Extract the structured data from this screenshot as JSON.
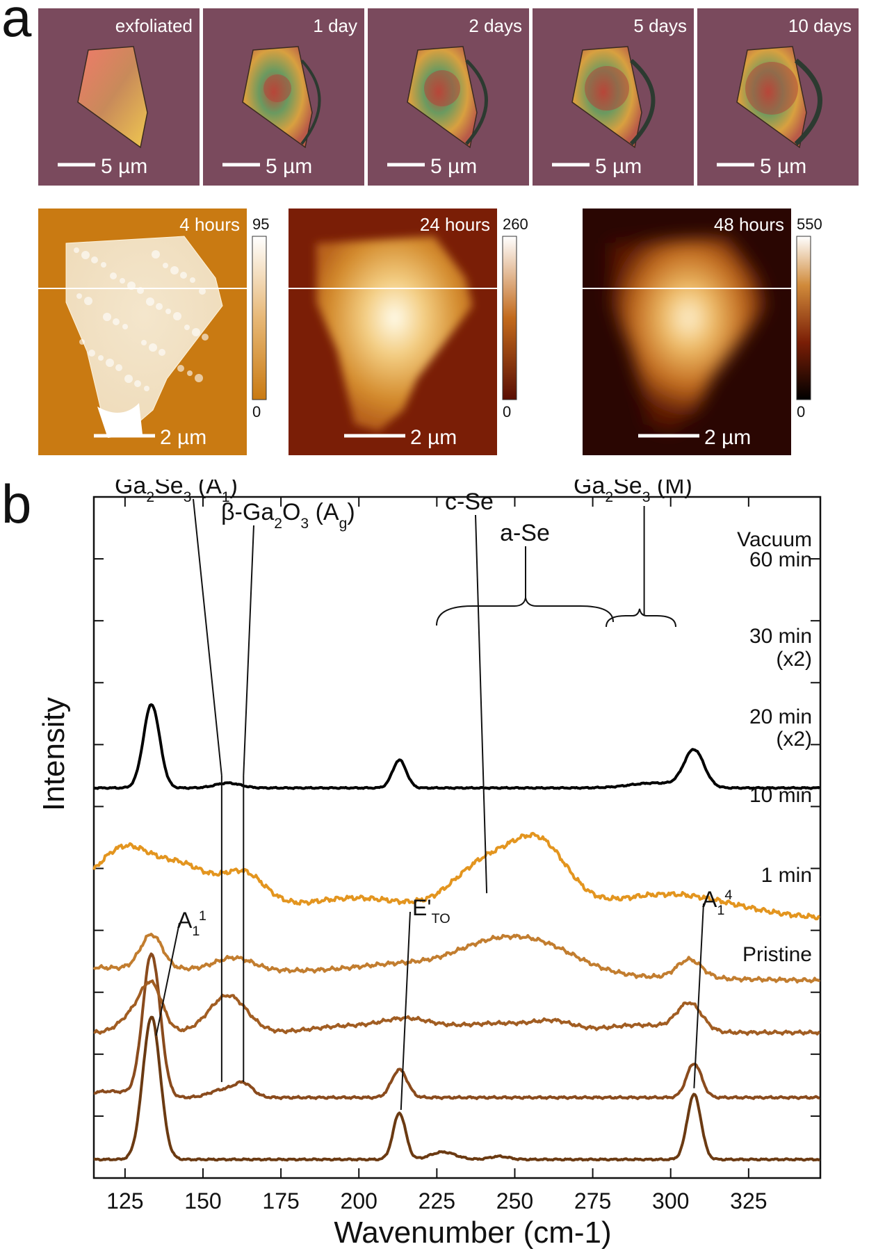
{
  "panel_labels": {
    "a": "a",
    "b": "b"
  },
  "optical": {
    "bg_color": "#7a4a5d",
    "frames": [
      {
        "label": "exfoliated",
        "scale": "5 µm"
      },
      {
        "label": "1 day",
        "scale": "5 µm"
      },
      {
        "label": "2 days",
        "scale": "5 µm"
      },
      {
        "label": "5 days",
        "scale": "5 µm"
      },
      {
        "label": "10 days",
        "scale": "5 µm"
      }
    ]
  },
  "afm": [
    {
      "label": "4 hours",
      "scale": "2 µm",
      "cbar_max": "95",
      "cbar_min": "0"
    },
    {
      "label": "24 hours",
      "scale": "2 µm",
      "cbar_max": "260",
      "cbar_min": "0"
    },
    {
      "label": "48 hours",
      "scale": "2 µm",
      "cbar_max": "550",
      "cbar_min": "0"
    }
  ],
  "chart_data": {
    "type": "line",
    "xlabel": "Wavenumber (cm-1)",
    "ylabel": "Intensity",
    "xlim": [
      115,
      348
    ],
    "ylim": [
      0,
      11
    ],
    "xticks": [
      125,
      150,
      175,
      200,
      225,
      250,
      275,
      300,
      325
    ],
    "series": [
      {
        "name": "Pristine",
        "offset": 0.3,
        "color": "#6b3a12",
        "peaks": [
          [
            133.5,
            2.3,
            2.8
          ],
          [
            213,
            0.75,
            2.0
          ],
          [
            227,
            0.12,
            4.0
          ],
          [
            245,
            0.05,
            3.0
          ],
          [
            307.5,
            1.05,
            2.2
          ]
        ],
        "noise": 0.015
      },
      {
        "name": "1 min",
        "offset": 1.3,
        "color": "#8a4b1d",
        "peaks": [
          [
            133.5,
            2.3,
            2.8
          ],
          [
            156,
            0.12,
            4.0
          ],
          [
            163,
            0.22,
            3.0
          ],
          [
            213,
            0.45,
            2.5
          ],
          [
            307.5,
            0.55,
            2.4
          ],
          [
            120,
            0.1,
            8.0
          ]
        ],
        "noise": 0.02
      },
      {
        "name": "10 min",
        "offset": 2.35,
        "color": "#a15d22",
        "peaks": [
          [
            133.5,
            0.75,
            3.5
          ],
          [
            127,
            0.25,
            4.0
          ],
          [
            158,
            0.6,
            6.0
          ],
          [
            195,
            0.1,
            10.0
          ],
          [
            215,
            0.2,
            8.0
          ],
          [
            245,
            0.15,
            15.0
          ],
          [
            263,
            0.12,
            6.0
          ],
          [
            306,
            0.45,
            4.0
          ],
          [
            290,
            0.12,
            10.0
          ]
        ],
        "noise": 0.03
      },
      {
        "name": "20 min",
        "offset": 3.4,
        "color": "#c27d2f",
        "peaks": [
          [
            133.5,
            0.55,
            3.5
          ],
          [
            160,
            0.2,
            6.0
          ],
          [
            215,
            0.15,
            15.0
          ],
          [
            255,
            0.55,
            14.0
          ],
          [
            238,
            0.2,
            10.0
          ],
          [
            306,
            0.3,
            4.0
          ]
        ],
        "noise": 0.035
      },
      {
        "name": "30 min",
        "offset": 4.4,
        "color": "#e3951f",
        "peaks": [
          [
            125,
            0.95,
            10.0
          ],
          [
            145,
            0.55,
            8.0
          ],
          [
            163,
            0.55,
            7.0
          ],
          [
            200,
            0.2,
            15.0
          ],
          [
            240,
            0.75,
            10.0
          ],
          [
            258,
            1.05,
            9.0
          ],
          [
            300,
            0.35,
            20.0
          ]
        ],
        "noise": 0.045
      },
      {
        "name": "Vacuum 60 min",
        "offset": 6.3,
        "color": "#000000",
        "peaks": [
          [
            133.5,
            1.35,
            2.6
          ],
          [
            158,
            0.08,
            4.0
          ],
          [
            213,
            0.45,
            2.2
          ],
          [
            307.5,
            0.6,
            3.2
          ],
          [
            295,
            0.08,
            8.0
          ]
        ],
        "noise": 0.012
      }
    ],
    "series_labels": [
      {
        "text": "Vacuum",
        "series": "Vacuum 60 min"
      },
      {
        "text": "60 min",
        "series": "Vacuum 60 min"
      },
      {
        "text": "30 min",
        "series": "30 min"
      },
      {
        "text": "(x2)",
        "series": "30 min"
      },
      {
        "text": "20 min",
        "series": "20 min"
      },
      {
        "text": "(x2)",
        "series": "20 min"
      },
      {
        "text": "10 min",
        "series": "10 min"
      },
      {
        "text": "1 min",
        "series": "1 min"
      },
      {
        "text": "Pristine",
        "series": "Pristine"
      }
    ],
    "annotations": {
      "ga2se3_a1": "Ga2Se3 (A1)",
      "beta_ga2o3": "β-Ga2O3 (Ag)",
      "c_se": "c-Se",
      "a_se": "a-Se",
      "ga2se3_m": "Ga2Se3 (M)",
      "a11": "A11",
      "eto": "E'TO",
      "a14": "A14"
    },
    "reference_lines_x": [
      156,
      163
    ]
  }
}
